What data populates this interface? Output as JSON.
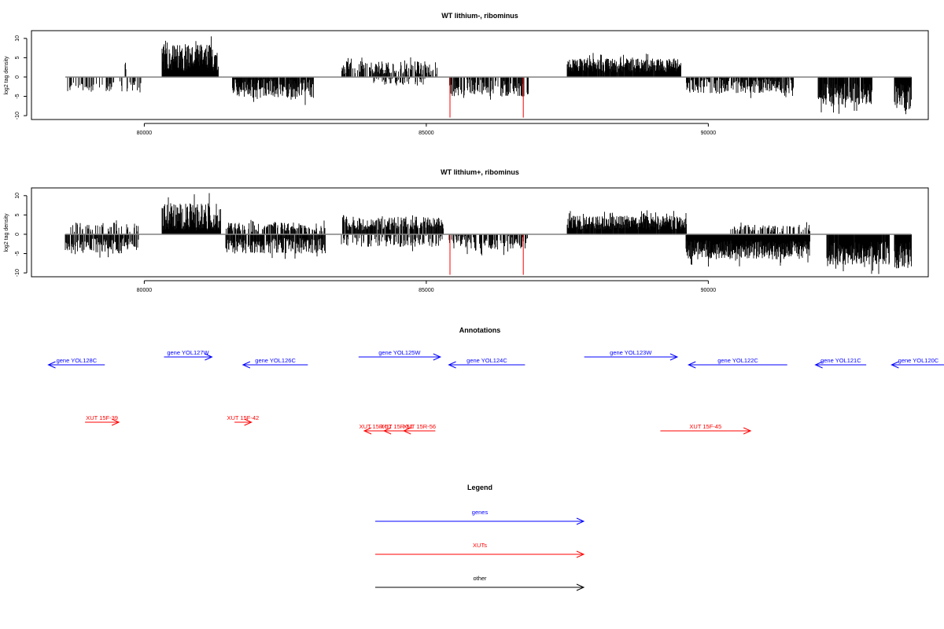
{
  "chart_data": [
    {
      "type": "bar",
      "title": "WT lithium-, ribominus",
      "ylabel": "log2 tag density",
      "xticks": [
        80000,
        85000,
        90000
      ],
      "yticks": [
        -10,
        -5,
        0,
        5,
        10
      ],
      "xlim": [
        78000,
        93900
      ],
      "ylim": [
        -11,
        12
      ],
      "baseline_x": [
        78600,
        93600
      ],
      "blocks": [
        {
          "x0": 78600,
          "x1": 80000,
          "sign": -1,
          "mean": 2.5,
          "var": 1.5,
          "density": 0.3
        },
        {
          "x0": 79650,
          "x1": 79700,
          "sign": 1,
          "mean": 3.0,
          "var": 1.0,
          "density": 0.5
        },
        {
          "x0": 80320,
          "x1": 81300,
          "sign": 1,
          "mean": 5.0,
          "var": 3.5,
          "density": 1.0
        },
        {
          "x0": 81550,
          "x1": 83000,
          "sign": -1,
          "mean": 3.0,
          "var": 2.5,
          "density": 0.85
        },
        {
          "x0": 83500,
          "x1": 85200,
          "sign": 1,
          "mean": 2.3,
          "var": 1.8,
          "density": 0.5
        },
        {
          "x0": 84050,
          "x1": 85000,
          "sign": -1,
          "mean": 1.2,
          "var": 1.0,
          "density": 0.3
        },
        {
          "x0": 85400,
          "x1": 86800,
          "sign": -1,
          "mean": 2.8,
          "var": 2.2,
          "density": 0.6
        },
        {
          "x0": 87500,
          "x1": 89500,
          "sign": 1,
          "mean": 3.0,
          "var": 1.8,
          "density": 0.95
        },
        {
          "x0": 89600,
          "x1": 91500,
          "sign": -1,
          "mean": 2.2,
          "var": 2.0,
          "density": 0.7
        },
        {
          "x0": 91950,
          "x1": 92900,
          "sign": -1,
          "mean": 4.5,
          "var": 2.8,
          "density": 0.8
        },
        {
          "x0": 93300,
          "x1": 93600,
          "sign": -1,
          "mean": 5.0,
          "var": 3.5,
          "density": 1.0
        }
      ],
      "markers": [
        {
          "x": 85420,
          "y": -10.5,
          "color": "#ff0000"
        },
        {
          "x": 86720,
          "y": -10.5,
          "color": "#ff0000"
        }
      ]
    },
    {
      "type": "bar",
      "title": "WT lithium+, ribominus",
      "ylabel": "log2 tag density",
      "xticks": [
        80000,
        85000,
        90000
      ],
      "yticks": [
        -10,
        -5,
        0,
        5,
        10
      ],
      "xlim": [
        78000,
        93900
      ],
      "ylim": [
        -11,
        12
      ],
      "baseline_x": [
        78600,
        93600
      ],
      "blocks": [
        {
          "x0": 78600,
          "x1": 79900,
          "sign": -1,
          "mean": 3.0,
          "var": 2.0,
          "density": 0.6
        },
        {
          "x0": 78700,
          "x1": 79900,
          "sign": 1,
          "mean": 1.8,
          "var": 1.2,
          "density": 0.25
        },
        {
          "x0": 80320,
          "x1": 81350,
          "sign": 1,
          "mean": 4.5,
          "var": 3.5,
          "density": 1.0
        },
        {
          "x0": 81450,
          "x1": 83200,
          "sign": -1,
          "mean": 3.0,
          "var": 2.0,
          "density": 0.8
        },
        {
          "x0": 81450,
          "x1": 83200,
          "sign": 1,
          "mean": 1.8,
          "var": 1.2,
          "density": 0.4
        },
        {
          "x0": 83500,
          "x1": 85300,
          "sign": 1,
          "mean": 2.8,
          "var": 1.8,
          "density": 0.7
        },
        {
          "x0": 83500,
          "x1": 85300,
          "sign": -1,
          "mean": 1.8,
          "var": 1.5,
          "density": 0.4
        },
        {
          "x0": 85400,
          "x1": 86800,
          "sign": -1,
          "mean": 2.2,
          "var": 1.8,
          "density": 0.5
        },
        {
          "x0": 87500,
          "x1": 89600,
          "sign": 1,
          "mean": 3.0,
          "var": 1.8,
          "density": 0.95
        },
        {
          "x0": 89600,
          "x1": 91800,
          "sign": -1,
          "mean": 4.0,
          "var": 2.5,
          "density": 1.0
        },
        {
          "x0": 90400,
          "x1": 91800,
          "sign": 1,
          "mean": 1.5,
          "var": 1.0,
          "density": 0.3
        },
        {
          "x0": 92100,
          "x1": 93200,
          "sign": -1,
          "mean": 5.0,
          "var": 3.0,
          "density": 0.95
        },
        {
          "x0": 93300,
          "x1": 93600,
          "sign": -1,
          "mean": 5.5,
          "var": 3.5,
          "density": 1.0
        }
      ],
      "markers": [
        {
          "x": 85420,
          "y": -10.5,
          "color": "#ff0000"
        },
        {
          "x": 86720,
          "y": -10.5,
          "color": "#ff0000"
        }
      ]
    }
  ],
  "annotations": {
    "title": "Annotations",
    "genes_color": "#0000ff",
    "xuts_color": "#ff0000",
    "genes": [
      {
        "label": "gene YOL128C",
        "start": 78300,
        "end": 79300,
        "dir": "left",
        "row": "low"
      },
      {
        "label": "gene YOL127W",
        "start": 80350,
        "end": 81200,
        "dir": "right",
        "row": "high"
      },
      {
        "label": "gene YOL126C",
        "start": 81750,
        "end": 82900,
        "dir": "left",
        "row": "low"
      },
      {
        "label": "gene YOL125W",
        "start": 83800,
        "end": 85250,
        "dir": "right",
        "row": "high"
      },
      {
        "label": "gene YOL124C",
        "start": 85400,
        "end": 86750,
        "dir": "left",
        "row": "low"
      },
      {
        "label": "gene YOL123W",
        "start": 87800,
        "end": 89450,
        "dir": "right",
        "row": "high"
      },
      {
        "label": "gene YOL122C",
        "start": 89650,
        "end": 91400,
        "dir": "left",
        "row": "low"
      },
      {
        "label": "gene YOL121C",
        "start": 91900,
        "end": 92800,
        "dir": "left",
        "row": "low"
      },
      {
        "label": "gene YOL120C",
        "start": 93250,
        "end": 94200,
        "dir": "left",
        "row": "low"
      }
    ],
    "xuts": [
      {
        "label": "XUT 15F-39",
        "start": 78950,
        "end": 79550,
        "dir": "right",
        "row": "high"
      },
      {
        "label": "XUT 15F-42",
        "start": 81600,
        "end": 81900,
        "dir": "right",
        "row": "high"
      },
      {
        "label": "XUT 15F-45",
        "start": 89150,
        "end": 90750,
        "dir": "right",
        "row": "low"
      },
      {
        "label": "XUT 15R-57",
        "start": 83900,
        "end": 84300,
        "dir": "left",
        "row": "low"
      },
      {
        "label": "XUT 15R-51",
        "start": 84250,
        "end": 84700,
        "dir": "left",
        "row": "low"
      },
      {
        "label": "XUT 15R-56",
        "start": 84600,
        "end": 85160,
        "dir": "left",
        "row": "low"
      }
    ]
  },
  "legend": {
    "title": "Legend",
    "items": [
      {
        "label": "genes",
        "color": "#0000ff"
      },
      {
        "label": "XUTs",
        "color": "#ff0000"
      },
      {
        "label": "other",
        "color": "#000000"
      }
    ]
  }
}
